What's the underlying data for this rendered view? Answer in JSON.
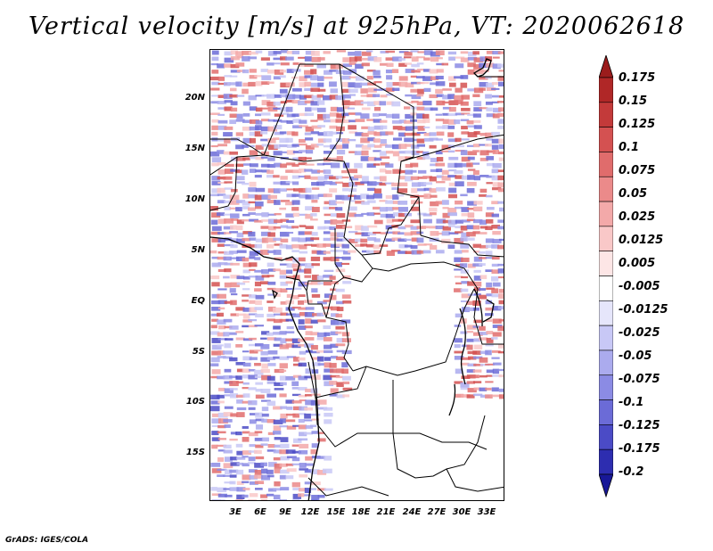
{
  "title": "Vertical velocity [m/s] at 925hPa, VT: 2020062618",
  "credit": "GrADS: IGES/COLA",
  "map": {
    "lat_labels": [
      "20N",
      "15N",
      "10N",
      "5N",
      "EQ",
      "5S",
      "10S",
      "15S"
    ],
    "lon_labels": [
      "3E",
      "6E",
      "9E",
      "12E",
      "15E",
      "18E",
      "21E",
      "24E",
      "27E",
      "30E",
      "33E"
    ]
  },
  "colorbar": {
    "labels": [
      "0.175",
      "0.15",
      "0.125",
      "0.1",
      "0.075",
      "0.05",
      "0.025",
      "0.0125",
      "0.005",
      "-0.005",
      "-0.0125",
      "-0.025",
      "-0.05",
      "-0.075",
      "-0.1",
      "-0.125",
      "-0.175",
      "-0.2"
    ],
    "colors": [
      "#9b1c1c",
      "#b02727",
      "#c33a3a",
      "#d45151",
      "#e06c6c",
      "#eb8a8a",
      "#f3a9a9",
      "#f9c8c8",
      "#fde6e6",
      "#ffffff",
      "#e6e6fb",
      "#c8c8f6",
      "#ababee",
      "#8b8be4",
      "#6b6bd7",
      "#4b4bc6",
      "#2d2db0",
      "#181898"
    ],
    "top_arrow_color": "#9b1c1c",
    "bottom_arrow_color": "#181898"
  }
}
